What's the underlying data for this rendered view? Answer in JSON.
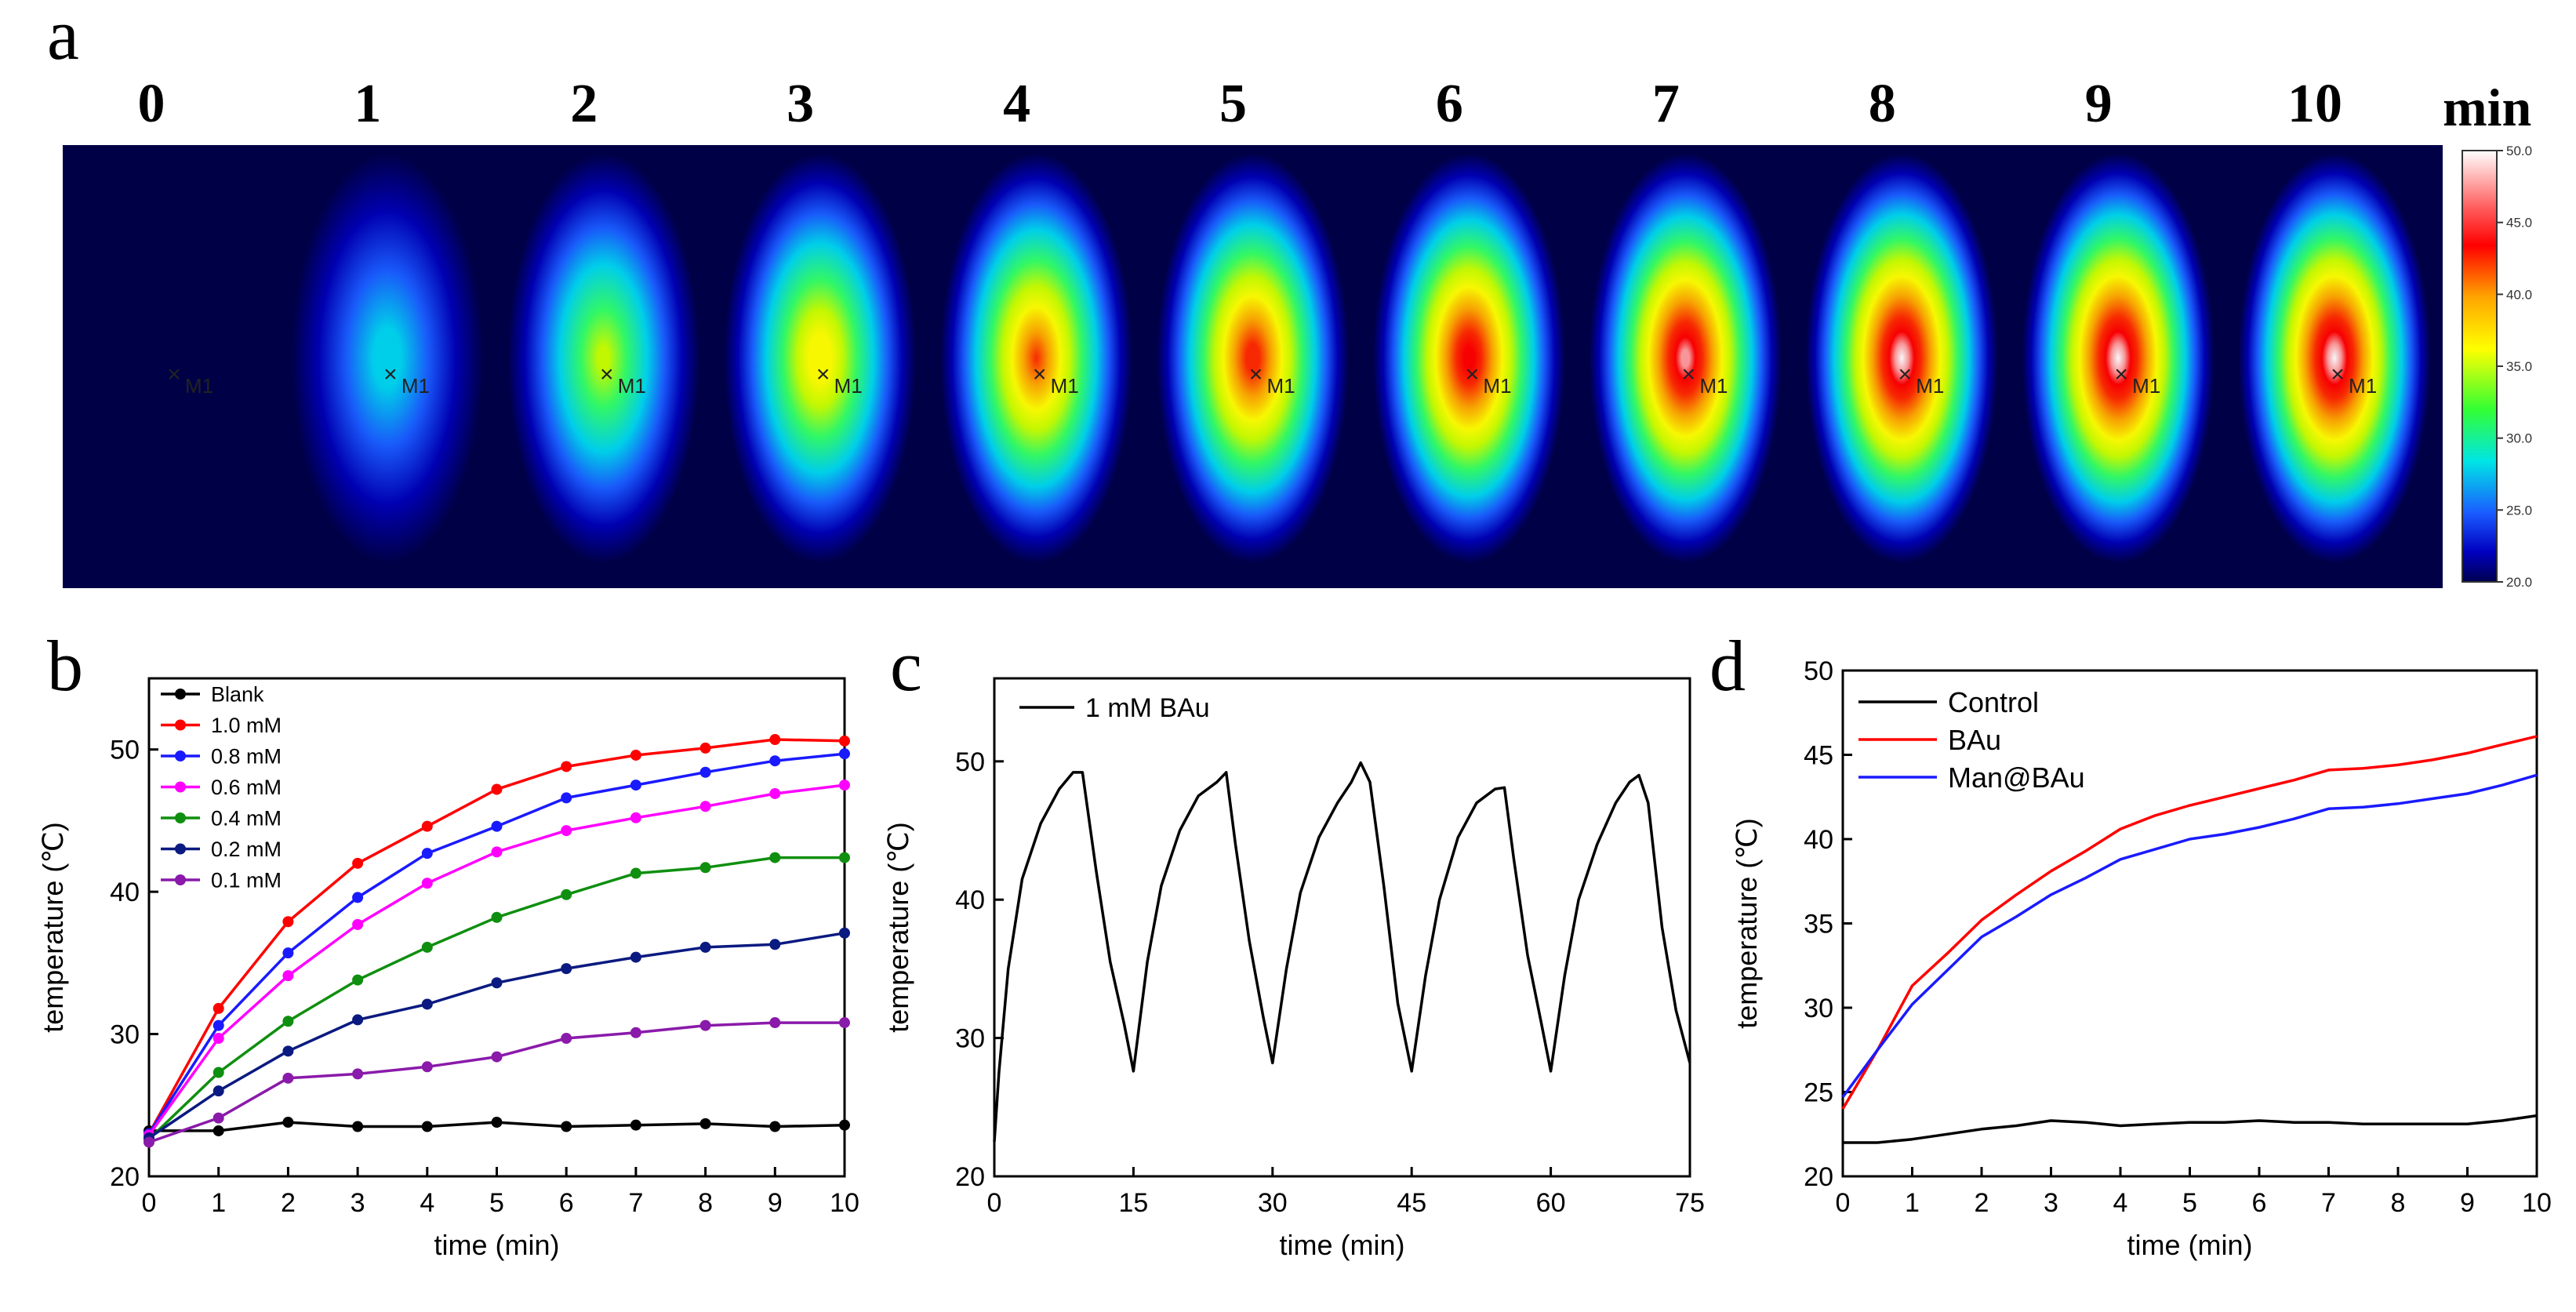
{
  "panel_letters": {
    "a": "a",
    "b": "b",
    "c": "c",
    "d": "d"
  },
  "panel_a": {
    "time_labels": [
      "0",
      "1",
      "2",
      "3",
      "4",
      "5",
      "6",
      "7",
      "8",
      "9",
      "10"
    ],
    "unit_label": "min",
    "marker_label": "M1",
    "colorbar_ticks": [
      "50.0",
      "45.0",
      "40.0",
      "35.0",
      "30.0",
      "25.0",
      "20.0"
    ],
    "hot_intensity": [
      0.02,
      0.35,
      0.55,
      0.68,
      0.8,
      0.86,
      0.92,
      0.97,
      1.0,
      1.0,
      1.0
    ]
  },
  "chart_data": [
    {
      "type": "line",
      "panel": "b",
      "xlabel": "time (min)",
      "ylabel": "temperature (℃)",
      "xlim": [
        0,
        10
      ],
      "ylim": [
        20,
        55
      ],
      "xticks": [
        0,
        1,
        2,
        3,
        4,
        5,
        6,
        7,
        8,
        9,
        10
      ],
      "yticks": [
        20,
        30,
        40,
        50
      ],
      "x": [
        0,
        1,
        2,
        3,
        4,
        5,
        6,
        7,
        8,
        9,
        10
      ],
      "markers": true,
      "series": [
        {
          "name": "Blank",
          "color": "#000000",
          "values": [
            23.2,
            23.2,
            23.8,
            23.5,
            23.5,
            23.8,
            23.5,
            23.6,
            23.7,
            23.5,
            23.6
          ]
        },
        {
          "name": "1.0 mM",
          "color": "#ff0000",
          "values": [
            23.0,
            31.8,
            37.9,
            42.0,
            44.6,
            47.2,
            48.8,
            49.6,
            50.1,
            50.7,
            50.6
          ]
        },
        {
          "name": "0.8 mM",
          "color": "#1a1aff",
          "values": [
            23.0,
            30.6,
            35.7,
            39.6,
            42.7,
            44.6,
            46.6,
            47.5,
            48.4,
            49.2,
            49.7
          ]
        },
        {
          "name": "0.6 mM",
          "color": "#ff00ff",
          "values": [
            22.9,
            29.7,
            34.1,
            37.7,
            40.6,
            42.8,
            44.3,
            45.2,
            46.0,
            46.9,
            47.5
          ]
        },
        {
          "name": "0.4 mM",
          "color": "#0f8f0f",
          "values": [
            22.6,
            27.3,
            30.9,
            33.8,
            36.1,
            38.2,
            39.8,
            41.3,
            41.7,
            42.4,
            42.4
          ]
        },
        {
          "name": "0.2 mM",
          "color": "#0a1a80",
          "values": [
            22.7,
            26.0,
            28.8,
            31.0,
            32.1,
            33.6,
            34.6,
            35.4,
            36.1,
            36.3,
            37.1
          ]
        },
        {
          "name": "0.1 mM",
          "color": "#8a1aaa",
          "values": [
            22.4,
            24.1,
            26.9,
            27.2,
            27.7,
            28.4,
            29.7,
            30.1,
            30.6,
            30.8,
            30.8
          ]
        }
      ]
    },
    {
      "type": "line",
      "panel": "c",
      "xlabel": "time (min)",
      "ylabel": "temperature (℃)",
      "xlim": [
        0,
        75
      ],
      "ylim": [
        20,
        56
      ],
      "xticks": [
        0,
        15,
        30,
        45,
        60,
        75
      ],
      "yticks": [
        20,
        30,
        40,
        50
      ],
      "markers": false,
      "series": [
        {
          "name": "1 mM BAu",
          "color": "#000000",
          "x": [
            0,
            0.5,
            1.5,
            3,
            5,
            7,
            8.5,
            9.5,
            11,
            12.5,
            14,
            15,
            16.5,
            18,
            20,
            22,
            24,
            25,
            26,
            27.5,
            29,
            30,
            31.5,
            33,
            35,
            37,
            38.5,
            39.5,
            40.5,
            42,
            43.5,
            45,
            46.5,
            48,
            50,
            52,
            54,
            55,
            56,
            57.5,
            59,
            60,
            61.5,
            63,
            65,
            67,
            68.5,
            69.5,
            70.5,
            72,
            73.5,
            75
          ],
          "y": [
            22.5,
            27.5,
            35.0,
            41.5,
            45.5,
            48.0,
            49.2,
            49.2,
            42.0,
            35.5,
            31.0,
            27.6,
            35.5,
            41.0,
            45.0,
            47.5,
            48.5,
            49.2,
            44.0,
            37.0,
            31.5,
            28.2,
            35.0,
            40.5,
            44.5,
            47.0,
            48.5,
            49.9,
            48.5,
            41.0,
            32.5,
            27.6,
            34.5,
            40.0,
            44.5,
            47.0,
            48.0,
            48.1,
            43.0,
            36.0,
            31.0,
            27.6,
            34.5,
            40.0,
            44.0,
            47.0,
            48.5,
            49.0,
            47.0,
            38.0,
            32.0,
            28.2
          ]
        }
      ]
    },
    {
      "type": "line",
      "panel": "d",
      "xlabel": "time (min)",
      "ylabel": "temperature (℃)",
      "xlim": [
        0,
        10
      ],
      "ylim": [
        20,
        50
      ],
      "xticks": [
        0,
        1,
        2,
        3,
        4,
        5,
        6,
        7,
        8,
        9,
        10
      ],
      "yticks": [
        20,
        25,
        30,
        35,
        40,
        45,
        50
      ],
      "markers": false,
      "series": [
        {
          "name": "Control",
          "color": "#000000",
          "x": [
            0,
            0.5,
            1,
            1.5,
            2,
            2.5,
            3,
            3.5,
            4,
            4.5,
            5,
            5.5,
            6,
            6.5,
            7,
            7.5,
            8,
            8.5,
            9,
            9.5,
            10
          ],
          "values": [
            22.0,
            22.0,
            22.2,
            22.5,
            22.8,
            23.0,
            23.3,
            23.2,
            23.0,
            23.1,
            23.2,
            23.2,
            23.3,
            23.2,
            23.2,
            23.1,
            23.1,
            23.1,
            23.1,
            23.3,
            23.6
          ]
        },
        {
          "name": "BAu",
          "color": "#ff0000",
          "x": [
            0,
            0.5,
            1,
            1.5,
            2,
            2.5,
            3,
            3.5,
            4,
            4.5,
            5,
            5.5,
            6,
            6.5,
            7,
            7.5,
            8,
            8.5,
            9,
            9.5,
            10
          ],
          "values": [
            24.0,
            27.5,
            31.3,
            33.2,
            35.2,
            36.7,
            38.1,
            39.3,
            40.6,
            41.4,
            42.0,
            42.5,
            43.0,
            43.5,
            44.1,
            44.2,
            44.4,
            44.7,
            45.1,
            45.6,
            46.1
          ]
        },
        {
          "name": "Man@BAu",
          "color": "#1a1aff",
          "x": [
            0,
            0.5,
            1,
            1.5,
            2,
            2.5,
            3,
            3.5,
            4,
            4.5,
            5,
            5.5,
            6,
            6.5,
            7,
            7.5,
            8,
            8.5,
            9,
            9.5,
            10
          ],
          "values": [
            24.7,
            27.5,
            30.2,
            32.2,
            34.2,
            35.4,
            36.7,
            37.7,
            38.8,
            39.4,
            40.0,
            40.3,
            40.7,
            41.2,
            41.8,
            41.9,
            42.1,
            42.4,
            42.7,
            43.2,
            43.8
          ]
        }
      ]
    }
  ]
}
